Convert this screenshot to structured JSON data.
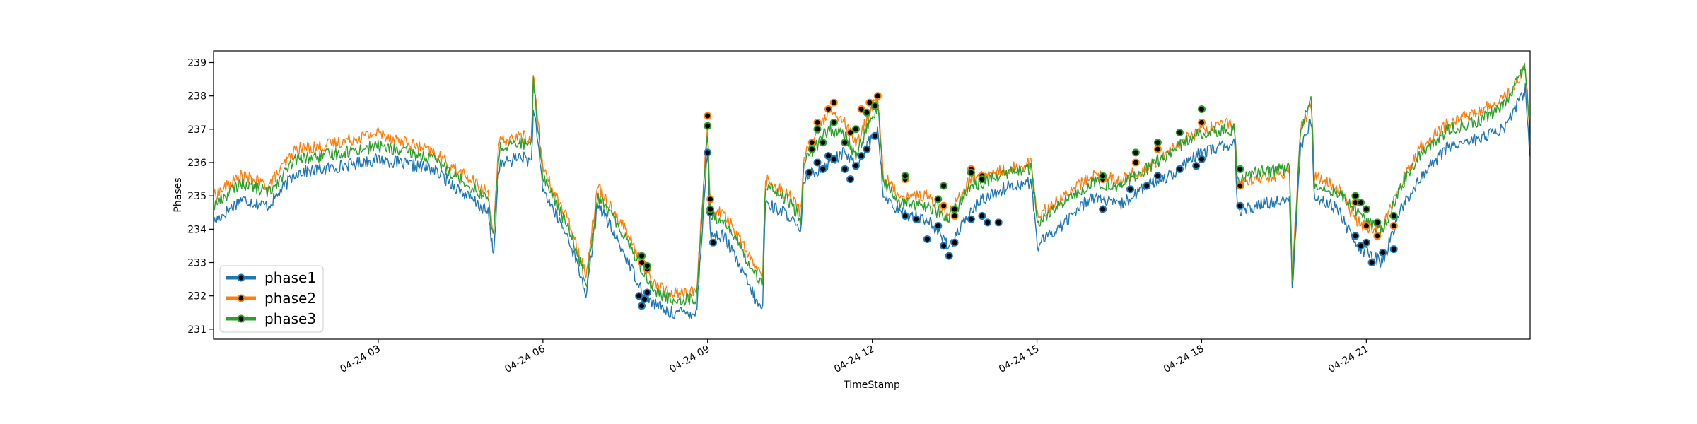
{
  "chart_data": {
    "type": "line",
    "title": "",
    "xlabel": "TimeStamp",
    "ylabel": "Phases",
    "xlim": [
      "04-24 00:00",
      "04-24 23:59"
    ],
    "ylim": [
      230.7,
      239.35
    ],
    "grid": false,
    "legend_position": "lower-left",
    "x_tick_labels": [
      "04-24 03",
      "04-24 06",
      "04-24 09",
      "04-24 12",
      "04-24 15",
      "04-24 18",
      "04-24 21"
    ],
    "y_tick_labels": [
      "231",
      "232",
      "233",
      "234",
      "235",
      "236",
      "237",
      "238",
      "239"
    ],
    "x_hours": [
      0,
      0.5,
      1,
      1.5,
      2,
      3,
      4,
      5,
      5.1,
      5.2,
      5.6,
      5.8,
      5.82,
      6,
      6.5,
      6.8,
      6.85,
      7,
      7.5,
      7.8,
      8,
      8.3,
      8.8,
      8.9,
      9,
      9.05,
      9.3,
      10,
      10.05,
      10.5,
      10.7,
      10.75,
      11.2,
      11.5,
      11.7,
      11.9,
      12.1,
      12.2,
      12.5,
      13,
      13.4,
      13.8,
      14,
      14.5,
      14.9,
      15,
      15.5,
      16,
      16.5,
      17,
      17.5,
      18,
      18.6,
      18.65,
      19,
      19.5,
      19.6,
      19.65,
      19.8,
      20,
      20.05,
      20.5,
      20.8,
      21,
      21.3,
      21.6,
      22,
      22.5,
      23,
      23.5,
      23.9,
      24
    ],
    "series": [
      {
        "name": "phase1",
        "color": "#1f77b4",
        "values": [
          234.2,
          234.9,
          234.7,
          235.7,
          235.8,
          236.1,
          235.8,
          234.5,
          233.2,
          235.9,
          236.2,
          236.0,
          237.8,
          235.2,
          233.6,
          232.0,
          232.8,
          234.8,
          233.2,
          232.2,
          231.8,
          231.5,
          231.5,
          234.0,
          236.4,
          233.8,
          233.8,
          231.5,
          234.8,
          234.4,
          233.8,
          235.5,
          236.0,
          236.3,
          235.9,
          236.5,
          237.0,
          235.0,
          234.5,
          234.3,
          233.5,
          234.5,
          234.9,
          235.3,
          235.4,
          233.5,
          234.2,
          235.0,
          234.7,
          235.3,
          235.7,
          236.3,
          236.6,
          234.5,
          234.7,
          234.9,
          235.0,
          232.2,
          236.4,
          237.3,
          235.0,
          234.6,
          233.5,
          233.3,
          233.0,
          234.5,
          235.6,
          236.5,
          236.7,
          237.0,
          238.2,
          235.7
        ]
      },
      {
        "name": "phase2",
        "color": "#ff7f0e",
        "values": [
          235.0,
          235.6,
          235.3,
          236.4,
          236.5,
          236.9,
          236.3,
          235.1,
          233.9,
          236.6,
          236.8,
          236.7,
          238.7,
          235.8,
          234.1,
          232.6,
          233.5,
          235.3,
          234.0,
          233.0,
          232.4,
          232.1,
          232.1,
          234.7,
          237.3,
          234.5,
          234.5,
          232.5,
          235.5,
          235.0,
          234.5,
          236.2,
          237.5,
          237.2,
          236.5,
          237.3,
          238.0,
          235.6,
          235.0,
          235.0,
          234.5,
          235.5,
          235.6,
          235.8,
          236.0,
          234.4,
          235.0,
          235.6,
          235.5,
          235.8,
          236.5,
          237.0,
          237.2,
          235.3,
          235.5,
          235.6,
          235.8,
          232.6,
          237.0,
          237.8,
          235.6,
          235.2,
          234.3,
          234.0,
          234.1,
          235.3,
          236.5,
          237.2,
          237.5,
          237.9,
          238.8,
          236.2
        ]
      },
      {
        "name": "phase3",
        "color": "#2ca02c",
        "values": [
          234.7,
          235.4,
          235.1,
          236.1,
          236.2,
          236.5,
          236.1,
          234.9,
          233.7,
          236.4,
          236.6,
          236.5,
          238.5,
          235.6,
          233.9,
          232.4,
          233.2,
          235.0,
          233.8,
          232.8,
          232.2,
          231.9,
          231.9,
          234.5,
          237.1,
          234.3,
          234.3,
          232.3,
          235.3,
          234.8,
          234.3,
          236.0,
          237.0,
          236.8,
          236.2,
          237.0,
          237.7,
          235.4,
          234.8,
          234.7,
          234.3,
          235.3,
          235.4,
          235.7,
          235.8,
          234.2,
          234.8,
          235.4,
          235.3,
          235.8,
          236.4,
          236.9,
          237.0,
          235.4,
          235.7,
          235.8,
          236.0,
          232.4,
          237.0,
          237.9,
          235.4,
          235.1,
          234.6,
          234.2,
          234.0,
          235.2,
          236.3,
          237.0,
          237.2,
          237.7,
          238.9,
          236.3
        ]
      }
    ],
    "highlighted_points": [
      {
        "series": "phase1",
        "x_hours": [
          7.75,
          7.8,
          7.85,
          7.9,
          9.0,
          9.05,
          9.1,
          10.85,
          11.0,
          11.1,
          11.2,
          11.3,
          11.5,
          11.6,
          11.7,
          11.8,
          11.9,
          12.05,
          12.6,
          12.8,
          13.0,
          13.2,
          13.3,
          13.4,
          13.5,
          13.8,
          14.0,
          14.1,
          14.3,
          16.2,
          16.7,
          17.0,
          17.2,
          17.6,
          17.9,
          18.0,
          18.7,
          20.8,
          20.9,
          21.0,
          21.1,
          21.3,
          21.5
        ],
        "values": [
          232.0,
          231.7,
          231.9,
          232.1,
          236.3,
          234.5,
          233.6,
          235.7,
          236.0,
          235.8,
          236.2,
          236.1,
          235.8,
          235.5,
          235.9,
          236.2,
          236.4,
          236.8,
          234.4,
          234.3,
          233.7,
          234.1,
          233.5,
          233.2,
          233.6,
          234.3,
          234.4,
          234.2,
          234.2,
          234.6,
          235.2,
          235.3,
          235.6,
          235.8,
          235.9,
          236.1,
          234.7,
          233.8,
          233.5,
          233.6,
          233.0,
          233.3,
          233.4
        ]
      },
      {
        "series": "phase2",
        "x_hours": [
          7.8,
          7.9,
          9.0,
          9.05,
          10.9,
          11.0,
          11.2,
          11.3,
          11.6,
          11.8,
          11.95,
          12.1,
          12.6,
          13.3,
          13.5,
          13.8,
          14.0,
          16.2,
          16.8,
          17.2,
          18.0,
          18.7,
          20.8,
          21.0,
          21.2,
          21.5
        ],
        "values": [
          233.0,
          232.8,
          237.4,
          234.9,
          236.6,
          237.2,
          237.6,
          237.8,
          236.9,
          237.6,
          237.8,
          238.0,
          235.5,
          234.7,
          234.4,
          235.8,
          235.6,
          235.5,
          236.0,
          236.4,
          237.2,
          235.3,
          234.8,
          234.1,
          233.8,
          234.1
        ]
      },
      {
        "series": "phase3",
        "x_hours": [
          7.8,
          7.9,
          9.0,
          9.05,
          10.9,
          11.0,
          11.1,
          11.3,
          11.5,
          11.7,
          11.9,
          12.05,
          12.6,
          13.2,
          13.3,
          13.5,
          13.8,
          14.0,
          16.2,
          16.8,
          17.2,
          17.6,
          18.0,
          18.7,
          20.8,
          20.9,
          21.0,
          21.2,
          21.5
        ],
        "values": [
          233.2,
          232.9,
          237.1,
          234.6,
          236.4,
          237.0,
          236.6,
          237.2,
          236.6,
          237.0,
          237.5,
          237.7,
          235.6,
          234.9,
          235.3,
          234.6,
          235.7,
          235.5,
          235.6,
          236.3,
          236.6,
          236.9,
          237.6,
          235.8,
          235.0,
          234.8,
          234.6,
          234.2,
          234.4
        ]
      }
    ]
  }
}
